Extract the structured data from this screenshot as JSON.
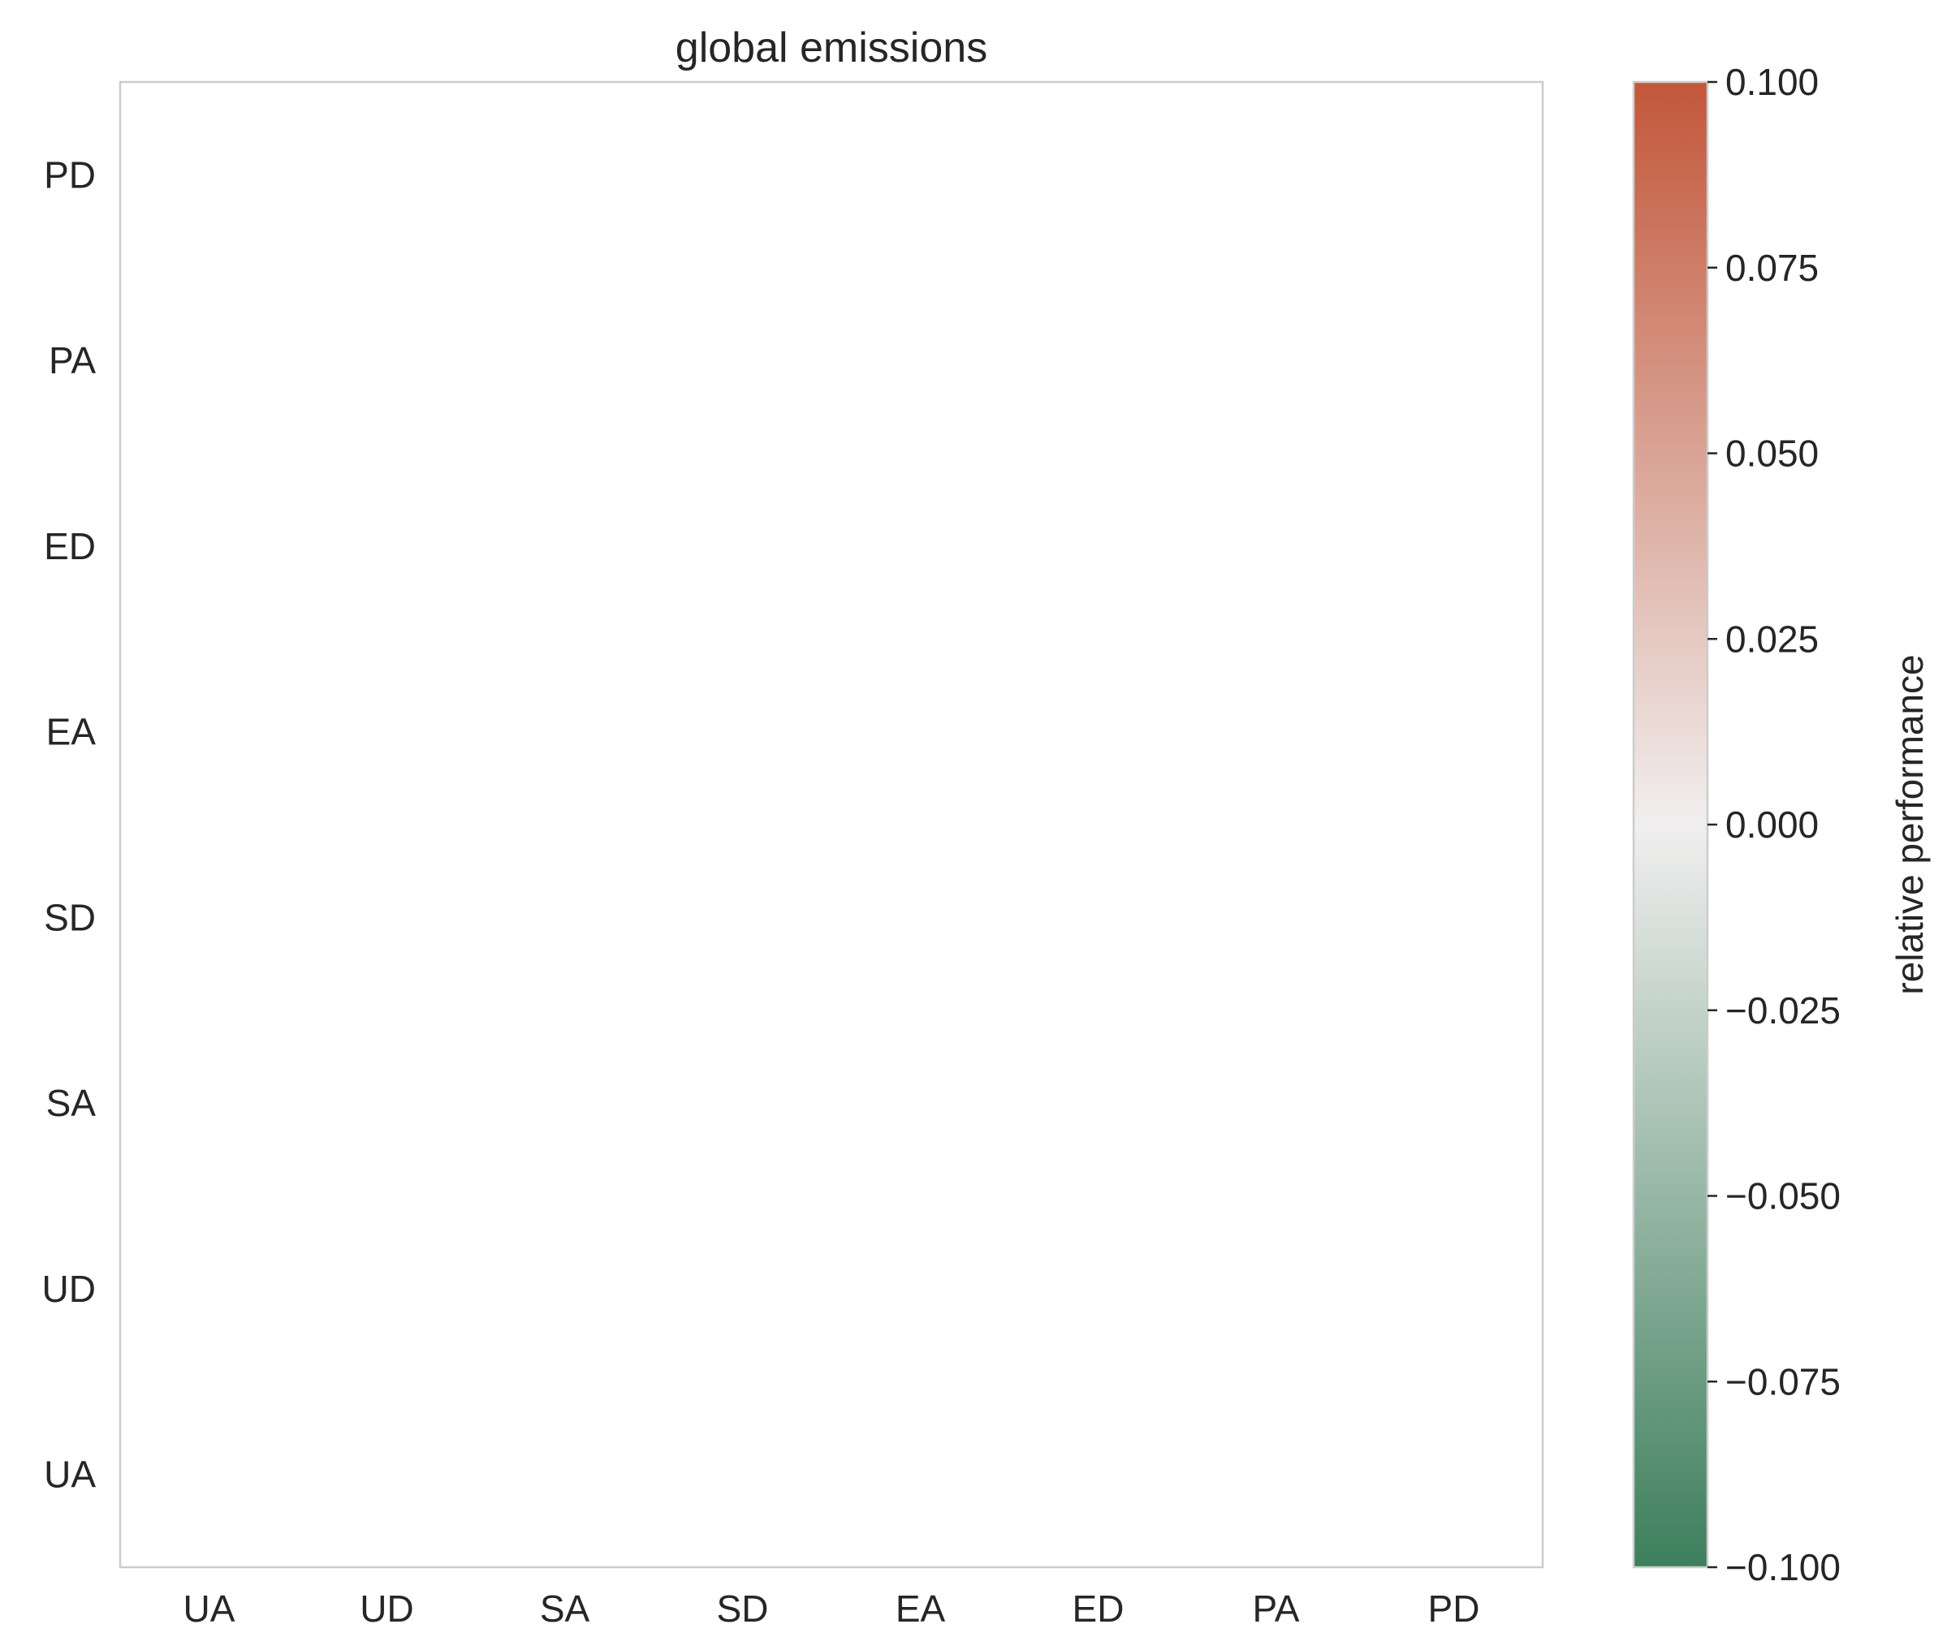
{
  "chart_data": {
    "type": "heatmap",
    "title": "global emissions",
    "x_categories": [
      "UA",
      "UD",
      "SA",
      "SD",
      "EA",
      "ED",
      "PA",
      "PD"
    ],
    "y_categories": [
      "UA",
      "UD",
      "SA",
      "SD",
      "EA",
      "ED",
      "PA",
      "PD"
    ],
    "values": [],
    "colorbar": {
      "label": "relative performance",
      "min": -0.1,
      "max": 0.1,
      "ticks": [
        0.1,
        0.075,
        0.05,
        0.025,
        0.0,
        -0.025,
        -0.05,
        -0.075,
        -0.1
      ],
      "tick_labels": [
        "0.100",
        "0.075",
        "0.050",
        "0.025",
        "0.000",
        "−0.025",
        "−0.050",
        "−0.075",
        "−0.100"
      ],
      "colors": {
        "low": "#3d7f5c",
        "mid": "#f1efef",
        "high": "#c2573a"
      }
    },
    "grid": false,
    "frame_color": "#cccccc"
  }
}
